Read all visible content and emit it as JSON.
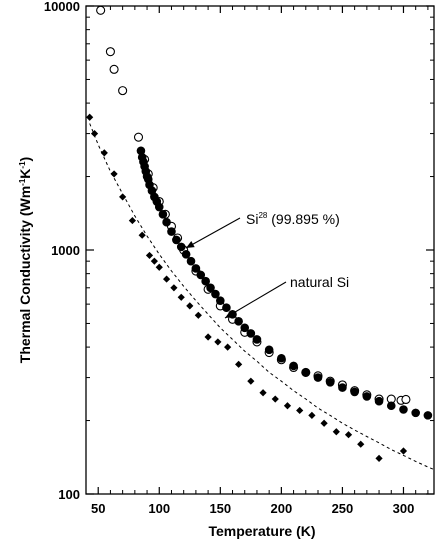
{
  "chart_data": {
    "type": "scatter",
    "title": "",
    "xlabel": "Temperature (K)",
    "ylabel_parts": {
      "main": "Thermal Conductivity (Wm",
      "exp1": "-1",
      "mid": "K",
      "exp2": "-1",
      "end": ")"
    },
    "xlim": [
      40,
      325
    ],
    "ylim": [
      100,
      10000
    ],
    "yscale": "log",
    "grid": false,
    "legend": "none",
    "x_ticks": [
      "50",
      "100",
      "150",
      "200",
      "250",
      "300"
    ],
    "y_ticks": [
      "100",
      "1000",
      "10000"
    ],
    "annotations": [
      {
        "id": "si28",
        "base": "Si",
        "sup": "28",
        "rest": " (99.895 %)"
      },
      {
        "id": "natural",
        "text": "natural Si"
      }
    ],
    "series": [
      {
        "marker": "open-circle",
        "x": [
          52,
          60,
          63,
          70,
          83,
          88,
          91,
          95,
          100,
          105,
          110,
          115,
          120,
          130,
          140,
          150,
          160,
          170,
          180,
          190,
          200,
          210,
          220,
          230,
          240,
          250,
          260,
          270,
          280,
          290,
          298,
          302
        ],
        "y": [
          9600,
          6500,
          5500,
          4500,
          2900,
          2350,
          2050,
          1800,
          1580,
          1400,
          1250,
          1120,
          1000,
          820,
          690,
          590,
          520,
          460,
          420,
          380,
          355,
          330,
          315,
          305,
          290,
          280,
          265,
          255,
          245,
          245,
          242,
          244
        ]
      },
      {
        "marker": "filled-circle",
        "x": [
          85,
          86,
          87,
          88,
          89,
          90,
          91,
          92,
          94,
          96,
          98,
          100,
          103,
          106,
          110,
          114,
          118,
          122,
          126,
          130,
          134,
          138,
          142,
          146,
          150,
          155,
          160,
          165,
          170,
          175,
          180,
          190,
          200,
          210,
          220,
          230,
          240,
          250,
          260,
          270,
          280,
          290,
          300,
          310,
          320
        ],
        "y": [
          2550,
          2400,
          2300,
          2200,
          2100,
          2000,
          1950,
          1850,
          1750,
          1650,
          1580,
          1500,
          1400,
          1300,
          1190,
          1100,
          1030,
          960,
          900,
          840,
          790,
          745,
          700,
          660,
          620,
          580,
          545,
          510,
          480,
          455,
          430,
          390,
          360,
          335,
          315,
          300,
          287,
          273,
          262,
          251,
          240,
          230,
          222,
          215,
          210
        ]
      },
      {
        "marker": "filled-diamond",
        "x": [
          43,
          47,
          55,
          63,
          70,
          78,
          86,
          92,
          96,
          100,
          106,
          112,
          118,
          125,
          132,
          140,
          148,
          156,
          165,
          175,
          185,
          195,
          205,
          215,
          225,
          235,
          245,
          255,
          265,
          280,
          300
        ],
        "y": [
          3500,
          3000,
          2500,
          2050,
          1650,
          1320,
          1150,
          950,
          900,
          850,
          760,
          700,
          640,
          590,
          540,
          440,
          420,
          400,
          340,
          290,
          260,
          245,
          230,
          220,
          210,
          195,
          180,
          175,
          160,
          140,
          150
        ]
      },
      {
        "marker": "dashed-fit",
        "x": [
          43,
          50,
          60,
          70,
          80,
          90,
          100,
          110,
          120,
          130,
          140,
          150,
          160,
          170,
          180,
          190,
          200,
          210,
          220,
          230,
          240,
          250,
          260,
          270,
          280,
          290,
          300,
          310,
          320,
          325
        ],
        "y": [
          3300,
          2700,
          2100,
          1700,
          1380,
          1140,
          960,
          820,
          710,
          620,
          545,
          480,
          430,
          385,
          350,
          315,
          290,
          265,
          245,
          225,
          210,
          195,
          183,
          172,
          162,
          152,
          144,
          136,
          129,
          126
        ]
      }
    ]
  }
}
